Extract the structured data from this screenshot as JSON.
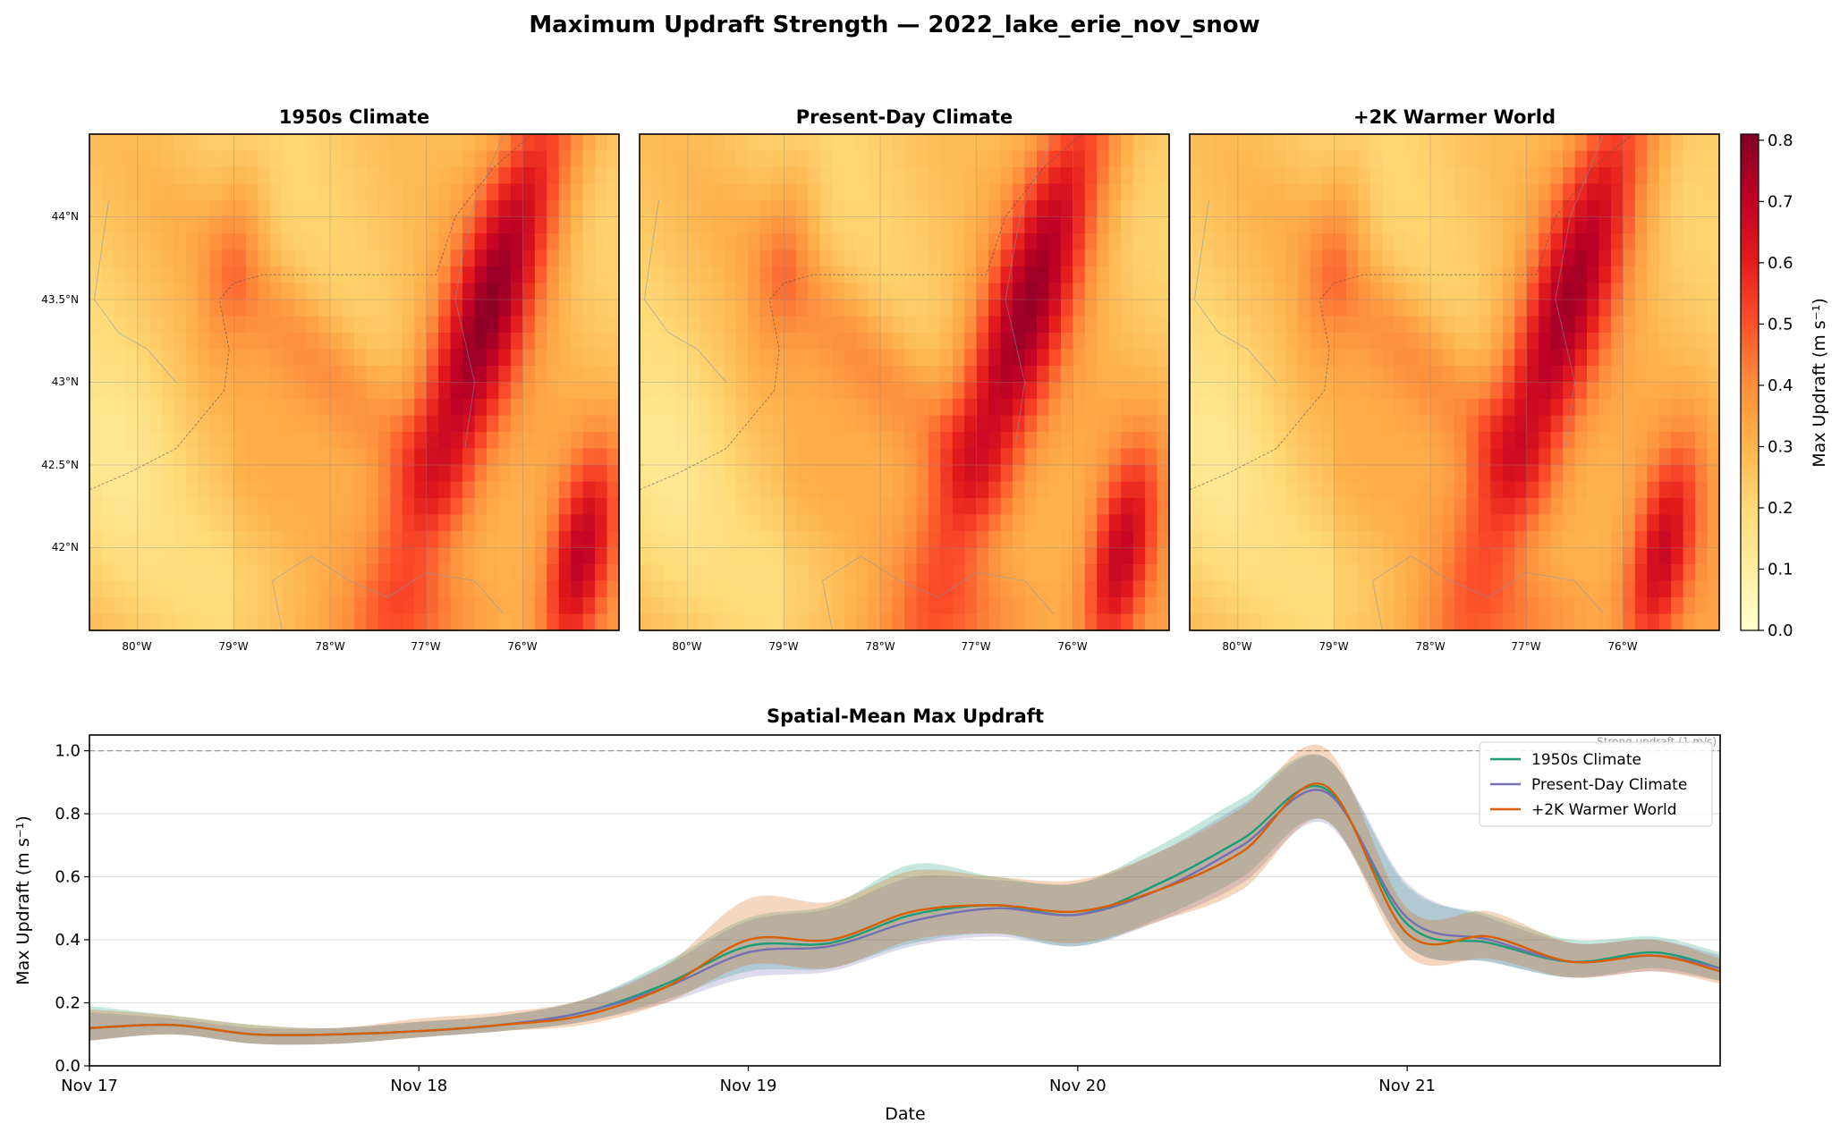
{
  "suptitle": "Maximum Updraft Strength — 2022_lake_erie_nov_snow",
  "colors": {
    "s1950": "#1b9e77",
    "present": "#7570b3",
    "warm": "#d95f02",
    "colormap": [
      "#ffffcc",
      "#ffeda0",
      "#fed976",
      "#feb24c",
      "#fd8d3c",
      "#fc4e2a",
      "#e31a1c",
      "#bd0026",
      "#800026"
    ]
  },
  "maps": {
    "titles": [
      "1950s Climate",
      "Present-Day Climate",
      "+2K Warmer World"
    ],
    "lon_range": [
      -80.5,
      -75.0
    ],
    "lat_range": [
      41.5,
      44.5
    ],
    "lon_ticks": [
      -80,
      -79,
      -78,
      -77,
      -76
    ],
    "lon_tick_labels": [
      "80°W",
      "79°W",
      "78°W",
      "77°W",
      "76°W"
    ],
    "lat_ticks": [
      44,
      43.5,
      43,
      42.5,
      42
    ],
    "lat_tick_labels": [
      "44°N",
      "43.5°N",
      "43°N",
      "42.5°N",
      "42°N"
    ],
    "grid": {
      "nx": 44,
      "ny": 30
    },
    "band_intensity": [
      0.78,
      0.76,
      0.74
    ],
    "colorbar": {
      "label": "Max Updraft (m s⁻¹)",
      "range": [
        0,
        0.81
      ],
      "ticks": [
        0.0,
        0.1,
        0.2,
        0.3,
        0.4,
        0.5,
        0.6,
        0.7,
        0.8
      ],
      "tick_labels": [
        "0.0",
        "0.1",
        "0.2",
        "0.3",
        "0.4",
        "0.5",
        "0.6",
        "0.7",
        "0.8"
      ]
    }
  },
  "chart_data": {
    "type": "line",
    "title": "Spatial-Mean Max Updraft",
    "xlabel": "Date",
    "ylabel": "Max Updraft (m s⁻¹)",
    "x_unit": "days since Nov 17",
    "xlim": [
      0,
      4.95
    ],
    "ylim": [
      0,
      1.05
    ],
    "x_ticks": [
      0,
      1,
      2,
      3,
      4
    ],
    "x_tick_labels": [
      "Nov 17",
      "Nov 18",
      "Nov 19",
      "Nov 20",
      "Nov 21"
    ],
    "y_ticks": [
      0.0,
      0.2,
      0.4,
      0.6,
      0.8,
      1.0
    ],
    "y_tick_labels": [
      "0.0",
      "0.2",
      "0.4",
      "0.6",
      "0.8",
      "1.0"
    ],
    "grid": "horizontal",
    "legend_position": "top-right",
    "reference_line": {
      "y": 1.0,
      "label": "Strong updraft (1 m/s)"
    },
    "x": [
      0,
      0.25,
      0.5,
      0.75,
      1.0,
      1.25,
      1.5,
      1.75,
      2.0,
      2.25,
      2.5,
      2.75,
      3.0,
      3.25,
      3.5,
      3.75,
      4.0,
      4.25,
      4.5,
      4.75,
      4.95
    ],
    "series": [
      {
        "name": "1950s Climate",
        "color_key": "s1950",
        "values": [
          0.12,
          0.13,
          0.1,
          0.1,
          0.11,
          0.13,
          0.17,
          0.26,
          0.38,
          0.39,
          0.48,
          0.51,
          0.48,
          0.58,
          0.72,
          0.88,
          0.45,
          0.39,
          0.33,
          0.36,
          0.31
        ],
        "lower": [
          0.08,
          0.1,
          0.07,
          0.07,
          0.09,
          0.11,
          0.14,
          0.21,
          0.3,
          0.31,
          0.39,
          0.42,
          0.38,
          0.47,
          0.6,
          0.78,
          0.38,
          0.33,
          0.28,
          0.31,
          0.27
        ],
        "upper": [
          0.19,
          0.16,
          0.13,
          0.12,
          0.14,
          0.16,
          0.21,
          0.33,
          0.47,
          0.51,
          0.64,
          0.6,
          0.58,
          0.7,
          0.85,
          0.98,
          0.57,
          0.48,
          0.4,
          0.41,
          0.36
        ]
      },
      {
        "name": "Present-Day Climate",
        "color_key": "present",
        "values": [
          0.12,
          0.13,
          0.1,
          0.1,
          0.11,
          0.13,
          0.17,
          0.25,
          0.36,
          0.38,
          0.46,
          0.5,
          0.48,
          0.56,
          0.7,
          0.87,
          0.47,
          0.4,
          0.33,
          0.35,
          0.31
        ],
        "lower": [
          0.08,
          0.1,
          0.07,
          0.07,
          0.09,
          0.11,
          0.14,
          0.2,
          0.28,
          0.3,
          0.38,
          0.41,
          0.38,
          0.46,
          0.58,
          0.77,
          0.38,
          0.33,
          0.28,
          0.3,
          0.27
        ],
        "upper": [
          0.17,
          0.15,
          0.12,
          0.12,
          0.14,
          0.16,
          0.21,
          0.32,
          0.46,
          0.5,
          0.6,
          0.59,
          0.58,
          0.68,
          0.83,
          0.98,
          0.58,
          0.47,
          0.39,
          0.4,
          0.35
        ]
      },
      {
        "name": "+2K Warmer World",
        "color_key": "warm",
        "values": [
          0.12,
          0.13,
          0.1,
          0.1,
          0.11,
          0.13,
          0.16,
          0.25,
          0.4,
          0.4,
          0.49,
          0.51,
          0.49,
          0.56,
          0.68,
          0.89,
          0.42,
          0.41,
          0.33,
          0.35,
          0.3
        ],
        "lower": [
          0.08,
          0.1,
          0.07,
          0.07,
          0.09,
          0.11,
          0.13,
          0.2,
          0.32,
          0.31,
          0.4,
          0.42,
          0.39,
          0.46,
          0.56,
          0.78,
          0.35,
          0.34,
          0.28,
          0.3,
          0.26
        ],
        "upper": [
          0.18,
          0.16,
          0.13,
          0.12,
          0.15,
          0.17,
          0.21,
          0.32,
          0.53,
          0.52,
          0.62,
          0.6,
          0.59,
          0.68,
          0.82,
          1.01,
          0.5,
          0.49,
          0.39,
          0.4,
          0.34
        ]
      }
    ]
  }
}
